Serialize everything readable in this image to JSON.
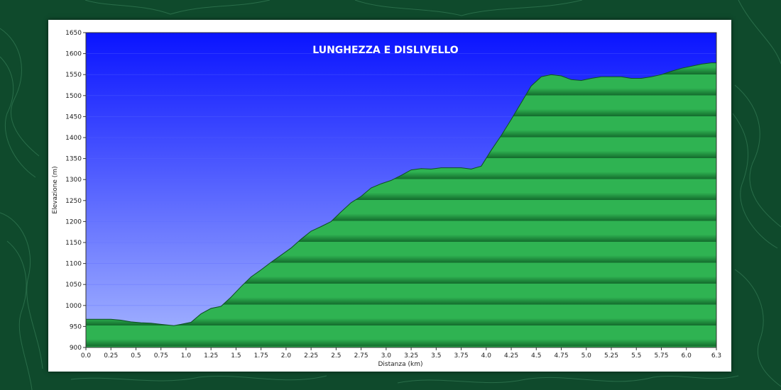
{
  "colors": {
    "background": "#0f4a2c",
    "sky_top": "#0a14ff",
    "sky_bottom": "#a6b6ff",
    "terrain_light": "#2fb352",
    "terrain_dark": "#136b2c",
    "title": "#ffffff"
  },
  "chart_data": {
    "type": "area",
    "title": "LUNGHEZZA E DISLIVELLO",
    "xlabel": "Distanza  (km)",
    "ylabel": "Elevazione (m)",
    "xlim": [
      0,
      6.3
    ],
    "ylim": [
      900,
      1650
    ],
    "x_ticks": [
      "0.0",
      "0.25",
      "0.5",
      "0.75",
      "1.0",
      "1.25",
      "1.5",
      "1.75",
      "2.0",
      "2.25",
      "2.5",
      "2.75",
      "3.0",
      "3.25",
      "3.5",
      "3.75",
      "4.0",
      "4.25",
      "4.5",
      "4.75",
      "5.0",
      "5.25",
      "5.5",
      "5.75",
      "6.0",
      "6.3"
    ],
    "y_ticks": [
      "900",
      "950",
      "1000",
      "1050",
      "1100",
      "1150",
      "1200",
      "1250",
      "1300",
      "1350",
      "1400",
      "1450",
      "1500",
      "1550",
      "1600",
      "1650"
    ],
    "grid": true,
    "series": [
      {
        "x": [
          0.0,
          0.1,
          0.25,
          0.35,
          0.45,
          0.55,
          0.65,
          0.75,
          0.88,
          0.95,
          1.05,
          1.15,
          1.25,
          1.35,
          1.45,
          1.55,
          1.65,
          1.75,
          1.85,
          1.95,
          2.05,
          2.15,
          2.25,
          2.35,
          2.45,
          2.55,
          2.65,
          2.75,
          2.85,
          2.95,
          3.05,
          3.15,
          3.25,
          3.35,
          3.45,
          3.55,
          3.65,
          3.75,
          3.85,
          3.95,
          4.05,
          4.15,
          4.25,
          4.35,
          4.45,
          4.55,
          4.65,
          4.75,
          4.85,
          4.95,
          5.05,
          5.15,
          5.25,
          5.35,
          5.45,
          5.55,
          5.65,
          5.75,
          5.85,
          5.95,
          6.05,
          6.15,
          6.25,
          6.3
        ],
        "y": [
          967,
          967,
          967,
          965,
          961,
          959,
          958,
          955,
          952,
          955,
          960,
          980,
          993,
          998,
          1020,
          1045,
          1068,
          1085,
          1103,
          1120,
          1137,
          1158,
          1177,
          1188,
          1200,
          1223,
          1245,
          1260,
          1280,
          1290,
          1298,
          1310,
          1323,
          1326,
          1325,
          1328,
          1328,
          1328,
          1325,
          1332,
          1370,
          1405,
          1443,
          1483,
          1523,
          1545,
          1550,
          1547,
          1538,
          1536,
          1541,
          1545,
          1545,
          1545,
          1541,
          1541,
          1545,
          1550,
          1558,
          1565,
          1570,
          1575,
          1578,
          1578
        ]
      }
    ]
  }
}
